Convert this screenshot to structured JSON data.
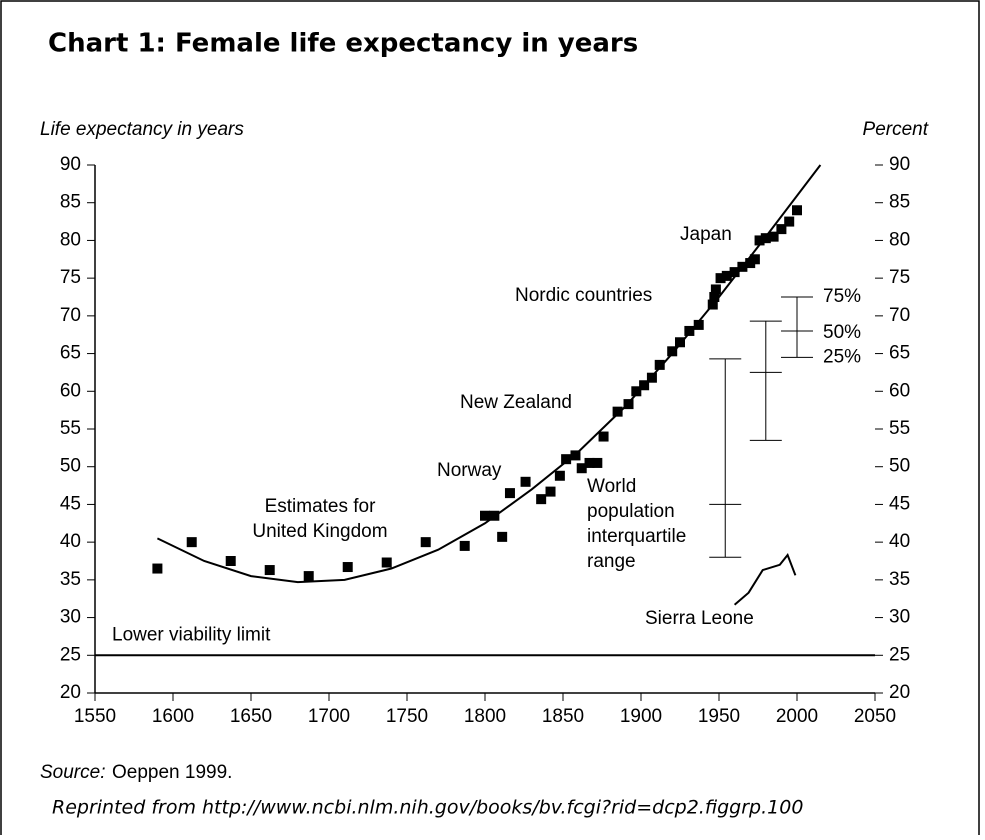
{
  "chart_data": {
    "type": "scatter",
    "title": "Chart 1: Female life expectancy in years",
    "y_label": "Life expectancy in years",
    "y2_label": "Percent",
    "xlim": [
      1550,
      2050
    ],
    "xticks": [
      1550,
      1600,
      1650,
      1700,
      1750,
      1800,
      1850,
      1900,
      1950,
      2000,
      2050
    ],
    "ylim": [
      20,
      90
    ],
    "yticks": [
      20,
      25,
      30,
      35,
      40,
      45,
      50,
      55,
      60,
      65,
      70,
      75,
      80,
      85,
      90
    ],
    "y2lim": [
      20,
      90
    ],
    "y2ticks": [
      20,
      25,
      30,
      35,
      40,
      45,
      50,
      55,
      60,
      65,
      70,
      75,
      80,
      85,
      90
    ],
    "color": "#000000",
    "points": {
      "x": [
        1590,
        1612,
        1637,
        1662,
        1687,
        1712,
        1737,
        1762,
        1787,
        1800,
        1806,
        1811,
        1816,
        1826,
        1836,
        1842,
        1848,
        1852,
        1858,
        1862,
        1867,
        1872,
        1876,
        1885,
        1892,
        1897,
        1902,
        1907,
        1912,
        1920,
        1925,
        1931,
        1937,
        1946,
        1947,
        1948,
        1951,
        1955,
        1960,
        1965,
        1970,
        1973,
        1976,
        1980,
        1985,
        1990,
        1995,
        2000
      ],
      "y": [
        36.5,
        40,
        37.5,
        36.3,
        35.5,
        36.7,
        37.3,
        40,
        39.5,
        43.5,
        43.5,
        40.7,
        46.5,
        48,
        45.7,
        46.7,
        48.8,
        51,
        51.5,
        49.8,
        50.5,
        50.5,
        54,
        57.3,
        58.3,
        60,
        60.8,
        61.8,
        63.5,
        65.3,
        66.5,
        68,
        68.8,
        71.5,
        72.5,
        73.5,
        75,
        75.3,
        75.8,
        76.5,
        77,
        77.5,
        80,
        80.3,
        80.5,
        81.5,
        82.5,
        84
      ]
    },
    "trend": {
      "x": [
        1590,
        1620,
        1650,
        1680,
        1710,
        1740,
        1770,
        1800,
        1830,
        1860,
        1890,
        1920,
        1950,
        1980,
        2015
      ],
      "y": [
        40.5,
        37.5,
        35.5,
        34.7,
        35,
        36.5,
        39,
        42.5,
        47,
        52,
        58,
        65,
        72.5,
        80.5,
        90
      ]
    },
    "sierra_leone": {
      "name": "Sierra Leone",
      "x": [
        1960,
        1969,
        1978,
        1989,
        1994,
        1999
      ],
      "y": [
        31.7,
        33.3,
        36.3,
        37,
        38.3,
        35.6
      ]
    },
    "interquartile": {
      "x": [
        1954,
        1980,
        2000
      ],
      "low": [
        38,
        53.5,
        64.5
      ],
      "median": [
        45,
        62.5,
        68
      ],
      "high": [
        64.3,
        69.3,
        72.5
      ],
      "labels": [
        "75%",
        "50%",
        "25%"
      ]
    },
    "viability": {
      "label": "Lower viability limit",
      "value": 25
    },
    "annotations": [
      [
        "Japan"
      ],
      [
        "Nordic countries"
      ],
      [
        "New Zealand"
      ],
      [
        "Norway"
      ],
      [
        "World",
        "population",
        "interquartile",
        "range"
      ],
      [
        "Estimates for",
        "United Kingdom"
      ],
      [
        "Sierra Leone"
      ]
    ],
    "source_label": "Source:",
    "source": "Oeppen 1999.",
    "note": "Reprinted from http://www.ncbi.nlm.nih.gov/books/bv.fcgi?rid=dcp2.figgrp.100"
  }
}
